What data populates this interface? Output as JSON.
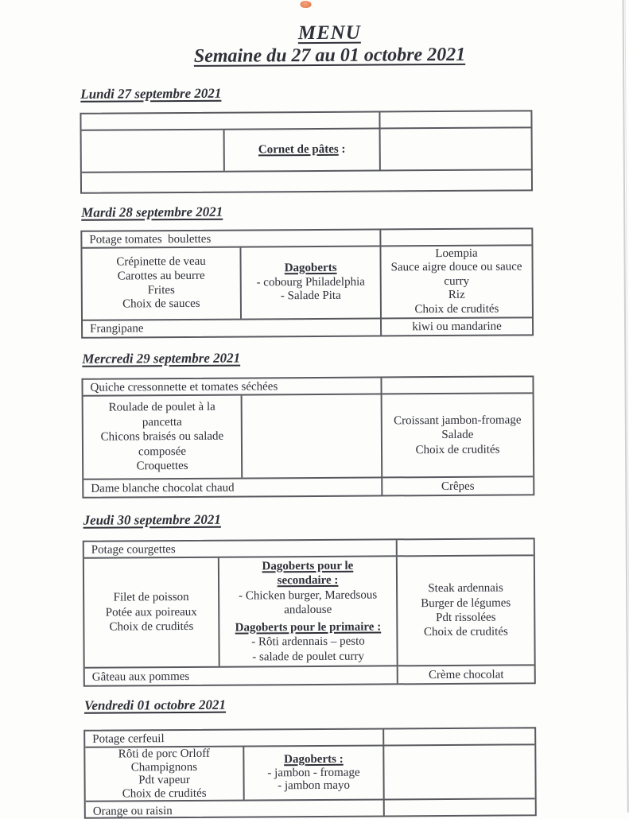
{
  "document": {
    "title": "MENU",
    "subtitle": "Semaine du 27 au 01 octobre 2021"
  },
  "days": [
    {
      "name": "lundi",
      "heading": "Lundi 27 septembre 2021",
      "soup": "",
      "col1": [],
      "col2_label": "Cornet de pâtes",
      "col2_suffix": " :",
      "col3": [],
      "dessert_left": "",
      "dessert_right": ""
    },
    {
      "name": "mardi",
      "heading": "Mardi 28 septembre 2021",
      "soup": "Potage tomates  boulettes",
      "col1": [
        "Crépinette de veau",
        "Carottes au beurre",
        "Frites",
        "Choix de sauces"
      ],
      "col2": [
        {
          "style": "title",
          "text": "Dagoberts"
        },
        {
          "style": "item",
          "text": "- cobourg Philadelphia"
        },
        {
          "style": "item",
          "text": "- Salade Pita"
        }
      ],
      "col3": [
        "Loempia",
        "Sauce aigre douce ou sauce curry",
        "Riz",
        "Choix de crudités"
      ],
      "dessert_left": "Frangipane",
      "dessert_right": "kiwi ou mandarine"
    },
    {
      "name": "mercredi",
      "heading": "Mercredi 29 septembre 2021",
      "soup": "Quiche cressonnette et tomates séchées",
      "col1": [
        "Roulade de poulet à la pancetta",
        "Chicons braisés ou salade composée",
        "Croquettes"
      ],
      "col2": [],
      "col3": [
        "Croissant jambon-fromage",
        "Salade",
        "Choix de crudités"
      ],
      "dessert_left": "Dame blanche chocolat chaud",
      "dessert_right": "Crêpes"
    },
    {
      "name": "jeudi",
      "heading": "Jeudi 30 septembre 2021",
      "soup": "Potage courgettes",
      "col1": [
        "Filet de poisson",
        "Potée aux poireaux",
        "Choix de crudités"
      ],
      "col2": [
        {
          "style": "title",
          "text": "Dagoberts pour le"
        },
        {
          "style": "title",
          "text": "secondaire :"
        },
        {
          "style": "item",
          "text": "- Chicken burger, Maredsous andalouse"
        },
        {
          "style": "gap",
          "text": ""
        },
        {
          "style": "title",
          "text": "Dagoberts pour le primaire :"
        },
        {
          "style": "item",
          "text": "- Rôti ardennais – pesto"
        },
        {
          "style": "item",
          "text": "- salade de poulet curry"
        }
      ],
      "col3": [
        "Steak ardennais",
        "Burger de légumes",
        "Pdt rissolées",
        "Choix de crudités"
      ],
      "dessert_left": "Gâteau aux pommes",
      "dessert_right": "Crème chocolat"
    },
    {
      "name": "vendredi",
      "heading": "Vendredi 01 octobre 2021",
      "soup": "Potage cerfeuil",
      "col1": [
        "Rôti de porc Orloff",
        "Champignons",
        "Pdt vapeur",
        "Choix de crudités"
      ],
      "col2": [
        {
          "style": "title",
          "text": "Dagoberts :"
        },
        {
          "style": "item",
          "text": "- jambon - fromage"
        },
        {
          "style": "item",
          "text": "- jambon mayo"
        }
      ],
      "col3": [],
      "dessert_left": "Orange ou raisin",
      "dessert_right": ""
    }
  ],
  "colors": {
    "ink": "#2f3038",
    "table_border": "#595a5f",
    "paper": "#fdfdfc",
    "logo_orange": "#e8875e",
    "scan_edge": "#cfd0d2"
  }
}
